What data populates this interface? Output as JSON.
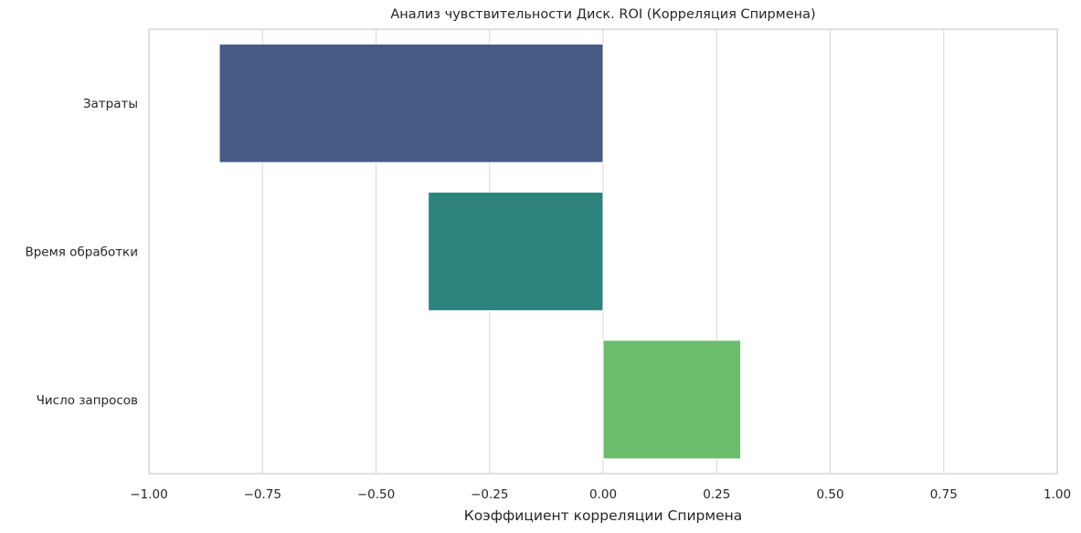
{
  "chart_data": {
    "type": "bar",
    "orientation": "horizontal",
    "title": "Анализ чувствительности Диск. ROI (Корреляция Спирмена)",
    "xlabel": "Коэффициент корреляции Спирмена",
    "ylabel": "",
    "xlim": [
      -1.0,
      1.0
    ],
    "xticks": [
      -1.0,
      -0.75,
      -0.5,
      -0.25,
      0.0,
      0.25,
      0.5,
      0.75,
      1.0
    ],
    "xtick_labels": [
      "−1.00",
      "−0.75",
      "−0.50",
      "−0.25",
      "0.00",
      "0.25",
      "0.50",
      "0.75",
      "1.00"
    ],
    "grid": true,
    "categories": [
      "Затраты",
      "Время обработки",
      "Число запросов"
    ],
    "values": [
      -0.845,
      -0.385,
      0.303
    ],
    "colors": [
      "#465a84",
      "#2e837d",
      "#6bbc6c"
    ]
  }
}
